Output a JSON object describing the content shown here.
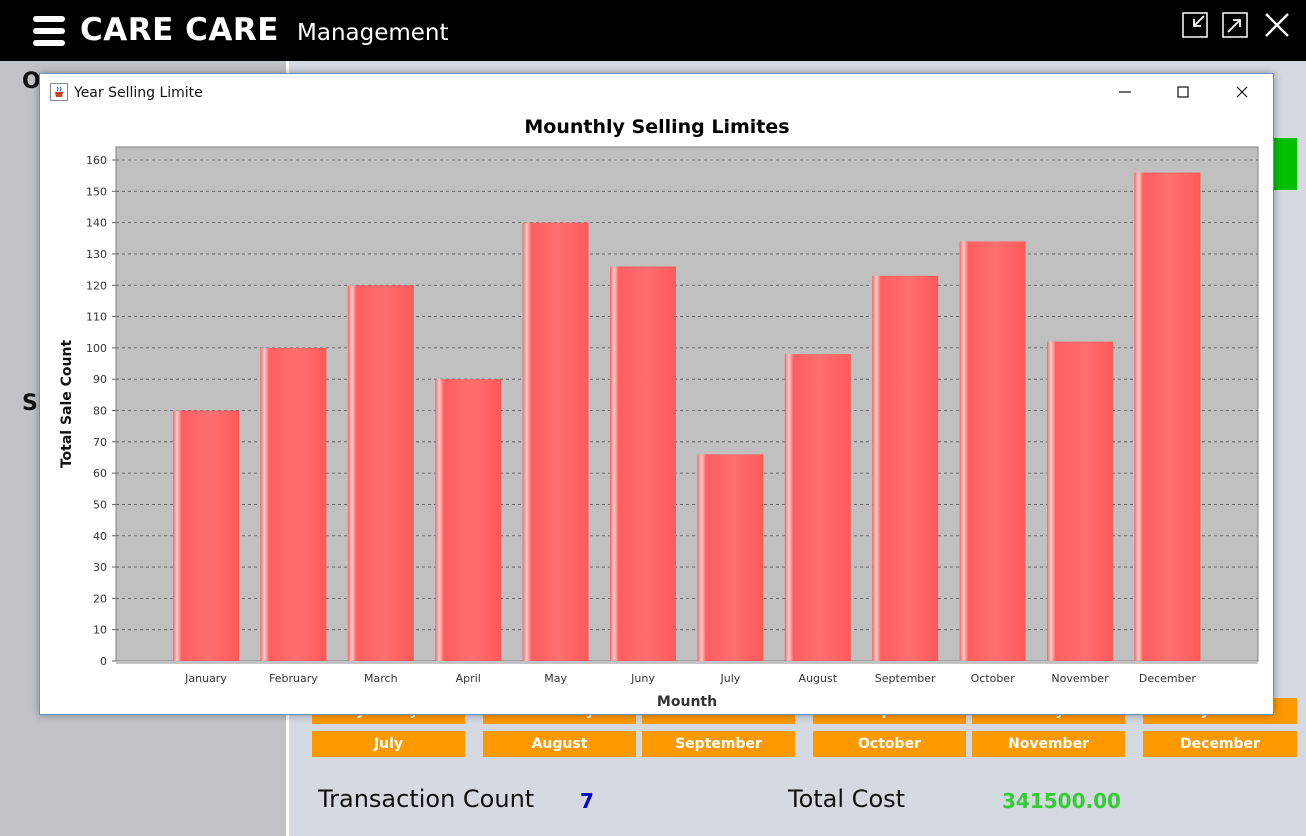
{
  "app": {
    "brand": "CARE CARE",
    "subtitle": "Management"
  },
  "left_panel": {
    "label_1": "O",
    "label_2": "Sa"
  },
  "month_buttons_partial": [
    "January",
    "February",
    "March",
    "April",
    "May",
    "June"
  ],
  "month_buttons": [
    "July",
    "August",
    "September",
    "October",
    "November",
    "December"
  ],
  "stats": {
    "transaction_label": "Transaction Count",
    "transaction_value": "7",
    "total_cost_label": "Total Cost",
    "total_cost_value": "341500.00"
  },
  "dialog": {
    "title": "Year Selling Limite"
  },
  "colors": {
    "bar": "#ff5f5f",
    "plot_bg": "#c0c0c0",
    "accent_orange": "#ff9900",
    "total_cost": "#33cc33",
    "transaction": "#0000cc"
  },
  "chart_data": {
    "type": "bar",
    "title": "Mounthly Selling Limites",
    "xlabel": "Mounth",
    "ylabel": "Total Sale Count",
    "categories": [
      "January",
      "February",
      "March",
      "April",
      "May",
      "Juny",
      "July",
      "August",
      "September",
      "October",
      "November",
      "December"
    ],
    "values": [
      80,
      100,
      120,
      90,
      140,
      126,
      66,
      98,
      123,
      134,
      102,
      156
    ],
    "ylim": [
      0,
      160
    ],
    "yticks": [
      0,
      10,
      20,
      30,
      40,
      50,
      60,
      70,
      80,
      90,
      100,
      110,
      120,
      130,
      140,
      150,
      160
    ],
    "grid": true,
    "legend": "none"
  }
}
